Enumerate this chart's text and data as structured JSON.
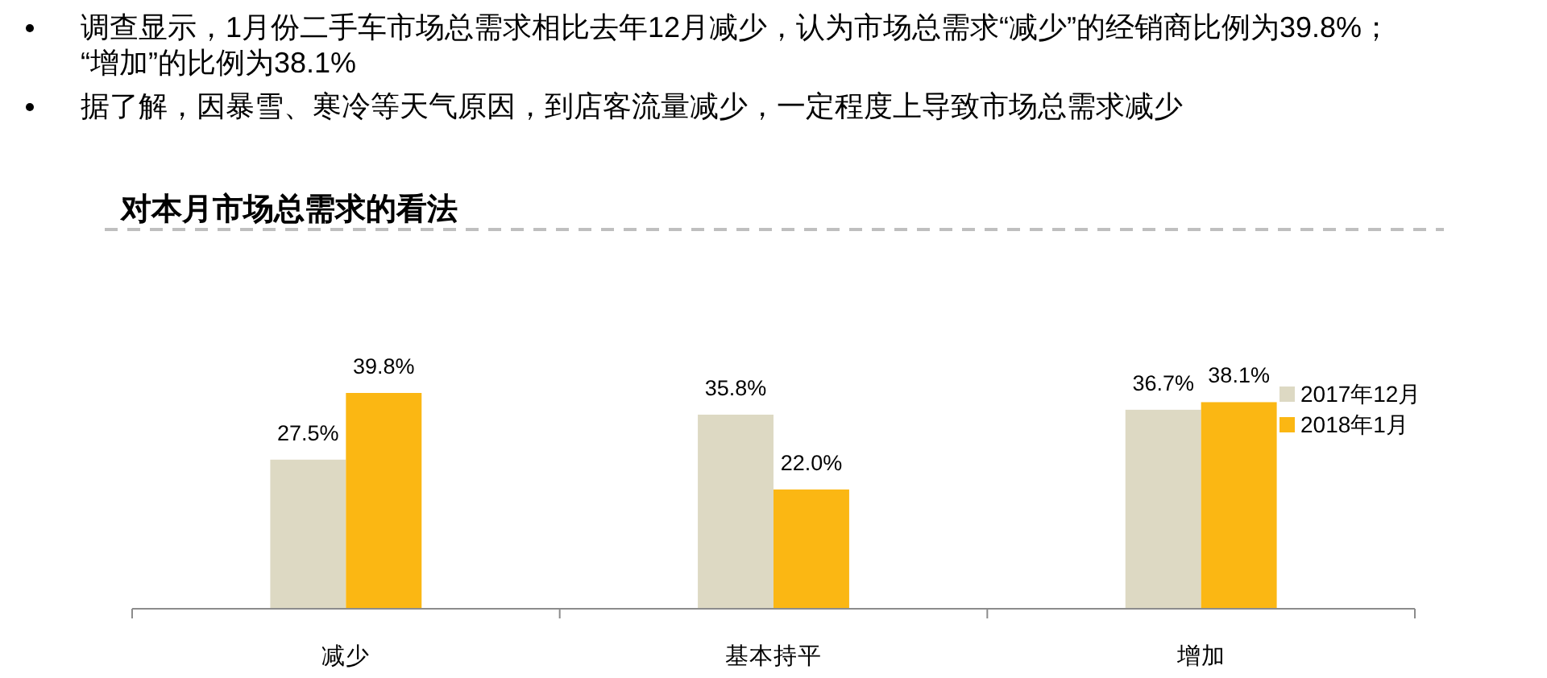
{
  "chart_data": {
    "type": "bar",
    "title": "对本月市场总需求的看法",
    "annotations": [
      "调查显示，1月份二手车市场总需求相比去年12月减少，认为市场总需求“减少”的经销商比例为39.8%；“增加”的比例为38.1%",
      "据了解，因暴雪、寒冷等天气原因，到店客流量减少，一定程度上导致市场总需求减少"
    ],
    "categories": [
      "减少",
      "基本持平",
      "增加"
    ],
    "series": [
      {
        "name": "2017年12月",
        "color": "#ddd9c3",
        "values": [
          27.5,
          35.8,
          36.7
        ],
        "value_labels": [
          "27.5%",
          "35.8%",
          "36.7%"
        ]
      },
      {
        "name": "2018年1月",
        "color": "#fbb713",
        "values": [
          39.8,
          22.0,
          38.1
        ],
        "value_labels": [
          "39.8%",
          "22.0%",
          "38.1%"
        ]
      }
    ],
    "legend": "right"
  }
}
